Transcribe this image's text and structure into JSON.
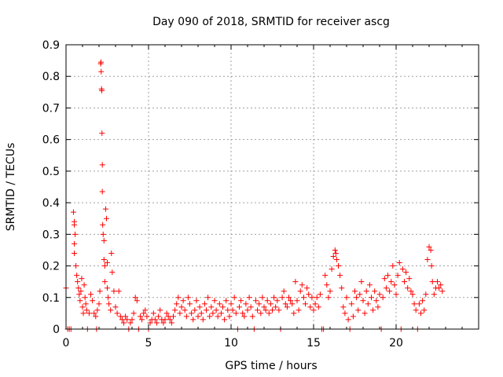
{
  "chart_data": {
    "type": "scatter",
    "title": "Day 090 of 2018, SRMTID for receiver ascg",
    "xlabel": "GPS time / hours",
    "ylabel": "SRMTID / TECUs",
    "xlim": [
      0,
      25
    ],
    "ylim": [
      0,
      0.9
    ],
    "grid": true,
    "marker": "+",
    "series_color": "#ff0000",
    "xticks": [
      {
        "value": 0,
        "label": "0"
      },
      {
        "value": 5,
        "label": "5"
      },
      {
        "value": 10,
        "label": "10"
      },
      {
        "value": 15,
        "label": "15"
      },
      {
        "value": 20,
        "label": "20"
      }
    ],
    "yticks": [
      {
        "value": 0,
        "label": "0"
      },
      {
        "value": 0.1,
        "label": "0.1"
      },
      {
        "value": 0.2,
        "label": "0.2"
      },
      {
        "value": 0.3,
        "label": "0.3"
      },
      {
        "value": 0.4,
        "label": "0.4"
      },
      {
        "value": 0.5,
        "label": "0.5"
      },
      {
        "value": 0.6,
        "label": "0.6"
      },
      {
        "value": 0.7,
        "label": "0.7"
      },
      {
        "value": 0.8,
        "label": "0.8"
      },
      {
        "value": 0.9,
        "label": "0.9"
      }
    ],
    "points": [
      [
        0.0,
        0.13
      ],
      [
        0.1,
        0.0
      ],
      [
        0.2,
        0.0
      ],
      [
        0.3,
        0.0
      ],
      [
        0.45,
        0.37
      ],
      [
        0.5,
        0.34
      ],
      [
        0.5,
        0.33
      ],
      [
        0.55,
        0.3
      ],
      [
        0.5,
        0.27
      ],
      [
        0.5,
        0.24
      ],
      [
        0.6,
        0.2
      ],
      [
        0.65,
        0.17
      ],
      [
        0.7,
        0.15
      ],
      [
        0.75,
        0.13
      ],
      [
        0.8,
        0.11
      ],
      [
        0.85,
        0.09
      ],
      [
        0.9,
        0.12
      ],
      [
        0.95,
        0.16
      ],
      [
        1.0,
        0.07
      ],
      [
        1.05,
        0.05
      ],
      [
        1.1,
        0.14
      ],
      [
        1.15,
        0.1
      ],
      [
        1.2,
        0.08
      ],
      [
        1.25,
        0.06
      ],
      [
        1.3,
        0.0
      ],
      [
        1.4,
        0.05
      ],
      [
        1.5,
        0.11
      ],
      [
        1.6,
        0.09
      ],
      [
        1.7,
        0.05
      ],
      [
        1.8,
        0.04
      ],
      [
        1.85,
        0.0
      ],
      [
        1.9,
        0.06
      ],
      [
        2.0,
        0.08
      ],
      [
        2.05,
        0.12
      ],
      [
        2.1,
        0.84
      ],
      [
        2.12,
        0.845
      ],
      [
        2.13,
        0.815
      ],
      [
        2.15,
        0.76
      ],
      [
        2.17,
        0.755
      ],
      [
        2.18,
        0.62
      ],
      [
        2.2,
        0.52
      ],
      [
        2.2,
        0.435
      ],
      [
        2.22,
        0.33
      ],
      [
        2.25,
        0.3
      ],
      [
        2.3,
        0.28
      ],
      [
        2.3,
        0.22
      ],
      [
        2.35,
        0.2
      ],
      [
        2.35,
        0.15
      ],
      [
        2.4,
        0.38
      ],
      [
        2.45,
        0.35
      ],
      [
        2.5,
        0.21
      ],
      [
        2.5,
        0.13
      ],
      [
        2.55,
        0.1
      ],
      [
        2.6,
        0.08
      ],
      [
        2.7,
        0.06
      ],
      [
        2.75,
        0.24
      ],
      [
        2.8,
        0.18
      ],
      [
        2.9,
        0.12
      ],
      [
        3.0,
        0.07
      ],
      [
        3.1,
        0.05
      ],
      [
        3.2,
        0.12
      ],
      [
        3.3,
        0.04
      ],
      [
        3.4,
        0.03
      ],
      [
        3.5,
        0.02
      ],
      [
        3.6,
        0.04
      ],
      [
        3.7,
        0.03
      ],
      [
        3.8,
        0.0
      ],
      [
        3.9,
        0.02
      ],
      [
        4.0,
        0.03
      ],
      [
        4.1,
        0.05
      ],
      [
        4.2,
        0.1
      ],
      [
        4.3,
        0.09
      ],
      [
        4.4,
        0.0
      ],
      [
        4.5,
        0.04
      ],
      [
        4.6,
        0.03
      ],
      [
        4.7,
        0.05
      ],
      [
        4.8,
        0.06
      ],
      [
        4.9,
        0.04
      ],
      [
        5.0,
        0.0
      ],
      [
        5.1,
        0.02
      ],
      [
        5.2,
        0.03
      ],
      [
        5.3,
        0.05
      ],
      [
        5.4,
        0.03
      ],
      [
        5.5,
        0.02
      ],
      [
        5.6,
        0.04
      ],
      [
        5.7,
        0.06
      ],
      [
        5.8,
        0.03
      ],
      [
        5.9,
        0.02
      ],
      [
        6.0,
        0.03
      ],
      [
        6.1,
        0.05
      ],
      [
        6.2,
        0.04
      ],
      [
        6.3,
        0.03
      ],
      [
        6.4,
        0.02
      ],
      [
        6.5,
        0.04
      ],
      [
        6.6,
        0.06
      ],
      [
        6.7,
        0.08
      ],
      [
        6.8,
        0.1
      ],
      [
        6.9,
        0.05
      ],
      [
        7.0,
        0.07
      ],
      [
        7.1,
        0.09
      ],
      [
        7.2,
        0.06
      ],
      [
        7.3,
        0.04
      ],
      [
        7.4,
        0.1
      ],
      [
        7.5,
        0.08
      ],
      [
        7.6,
        0.05
      ],
      [
        7.7,
        0.03
      ],
      [
        7.8,
        0.06
      ],
      [
        7.9,
        0.09
      ],
      [
        8.0,
        0.04
      ],
      [
        8.1,
        0.07
      ],
      [
        8.2,
        0.05
      ],
      [
        8.3,
        0.03
      ],
      [
        8.4,
        0.08
      ],
      [
        8.5,
        0.06
      ],
      [
        8.6,
        0.1
      ],
      [
        8.7,
        0.04
      ],
      [
        8.8,
        0.07
      ],
      [
        8.9,
        0.05
      ],
      [
        9.0,
        0.09
      ],
      [
        9.1,
        0.06
      ],
      [
        9.2,
        0.04
      ],
      [
        9.3,
        0.08
      ],
      [
        9.4,
        0.05
      ],
      [
        9.5,
        0.07
      ],
      [
        9.6,
        0.03
      ],
      [
        9.7,
        0.09
      ],
      [
        9.8,
        0.06
      ],
      [
        9.9,
        0.04
      ],
      [
        10.0,
        0.08
      ],
      [
        10.1,
        0.06
      ],
      [
        10.2,
        0.1
      ],
      [
        10.3,
        0.05
      ],
      [
        10.4,
        0.0
      ],
      [
        10.5,
        0.07
      ],
      [
        10.6,
        0.09
      ],
      [
        10.7,
        0.05
      ],
      [
        10.8,
        0.04
      ],
      [
        10.9,
        0.08
      ],
      [
        11.0,
        0.06
      ],
      [
        11.1,
        0.1
      ],
      [
        11.2,
        0.07
      ],
      [
        11.3,
        0.04
      ],
      [
        11.4,
        0.0
      ],
      [
        11.5,
        0.09
      ],
      [
        11.6,
        0.06
      ],
      [
        11.7,
        0.08
      ],
      [
        11.8,
        0.05
      ],
      [
        11.9,
        0.1
      ],
      [
        12.0,
        0.07
      ],
      [
        12.1,
        0.06
      ],
      [
        12.2,
        0.09
      ],
      [
        12.3,
        0.05
      ],
      [
        12.4,
        0.08
      ],
      [
        12.5,
        0.06
      ],
      [
        12.6,
        0.1
      ],
      [
        12.7,
        0.07
      ],
      [
        12.8,
        0.09
      ],
      [
        12.9,
        0.06
      ],
      [
        13.0,
        0.0
      ],
      [
        13.1,
        0.1
      ],
      [
        13.2,
        0.12
      ],
      [
        13.3,
        0.08
      ],
      [
        13.4,
        0.07
      ],
      [
        13.5,
        0.1
      ],
      [
        13.6,
        0.09
      ],
      [
        13.7,
        0.08
      ],
      [
        13.8,
        0.05
      ],
      [
        13.9,
        0.15
      ],
      [
        14.0,
        0.09
      ],
      [
        14.1,
        0.06
      ],
      [
        14.2,
        0.12
      ],
      [
        14.3,
        0.14
      ],
      [
        14.4,
        0.1
      ],
      [
        14.5,
        0.08
      ],
      [
        14.6,
        0.13
      ],
      [
        14.7,
        0.11
      ],
      [
        14.8,
        0.07
      ],
      [
        14.9,
        0.1
      ],
      [
        15.0,
        0.06
      ],
      [
        15.1,
        0.08
      ],
      [
        15.2,
        0.1
      ],
      [
        15.3,
        0.07
      ],
      [
        15.4,
        0.11
      ],
      [
        15.5,
        0.0
      ],
      [
        15.6,
        0.0
      ],
      [
        15.7,
        0.17
      ],
      [
        15.8,
        0.14
      ],
      [
        15.9,
        0.1
      ],
      [
        16.0,
        0.12
      ],
      [
        16.1,
        0.19
      ],
      [
        16.2,
        0.23
      ],
      [
        16.3,
        0.25
      ],
      [
        16.35,
        0.24
      ],
      [
        16.4,
        0.22
      ],
      [
        16.5,
        0.2
      ],
      [
        16.6,
        0.17
      ],
      [
        16.7,
        0.13
      ],
      [
        16.8,
        0.07
      ],
      [
        16.9,
        0.05
      ],
      [
        17.0,
        0.1
      ],
      [
        17.1,
        0.03
      ],
      [
        17.2,
        0.0
      ],
      [
        17.3,
        0.08
      ],
      [
        17.4,
        0.04
      ],
      [
        17.5,
        0.12
      ],
      [
        17.6,
        0.1
      ],
      [
        17.7,
        0.06
      ],
      [
        17.8,
        0.11
      ],
      [
        17.9,
        0.15
      ],
      [
        18.0,
        0.09
      ],
      [
        18.1,
        0.05
      ],
      [
        18.2,
        0.12
      ],
      [
        18.3,
        0.08
      ],
      [
        18.4,
        0.14
      ],
      [
        18.5,
        0.1
      ],
      [
        18.6,
        0.06
      ],
      [
        18.7,
        0.12
      ],
      [
        18.8,
        0.09
      ],
      [
        18.9,
        0.07
      ],
      [
        19.0,
        0.11
      ],
      [
        19.1,
        0.0
      ],
      [
        19.2,
        0.1
      ],
      [
        19.3,
        0.16
      ],
      [
        19.4,
        0.13
      ],
      [
        19.5,
        0.17
      ],
      [
        19.6,
        0.12
      ],
      [
        19.7,
        0.15
      ],
      [
        19.8,
        0.2
      ],
      [
        19.9,
        0.14
      ],
      [
        20.0,
        0.11
      ],
      [
        20.1,
        0.17
      ],
      [
        20.2,
        0.21
      ],
      [
        20.3,
        0.0
      ],
      [
        20.4,
        0.19
      ],
      [
        20.5,
        0.15
      ],
      [
        20.6,
        0.18
      ],
      [
        20.7,
        0.13
      ],
      [
        20.8,
        0.16
      ],
      [
        20.9,
        0.12
      ],
      [
        21.0,
        0.11
      ],
      [
        21.1,
        0.08
      ],
      [
        21.2,
        0.06
      ],
      [
        21.3,
        0.0
      ],
      [
        21.4,
        0.08
      ],
      [
        21.5,
        0.05
      ],
      [
        21.6,
        0.09
      ],
      [
        21.7,
        0.06
      ],
      [
        21.8,
        0.11
      ],
      [
        21.9,
        0.22
      ],
      [
        22.0,
        0.26
      ],
      [
        22.1,
        0.25
      ],
      [
        22.15,
        0.2
      ],
      [
        22.2,
        0.15
      ],
      [
        22.3,
        0.11
      ],
      [
        22.4,
        0.13
      ],
      [
        22.5,
        0.15
      ],
      [
        22.6,
        0.13
      ],
      [
        22.7,
        0.14
      ],
      [
        22.8,
        0.12
      ]
    ]
  }
}
